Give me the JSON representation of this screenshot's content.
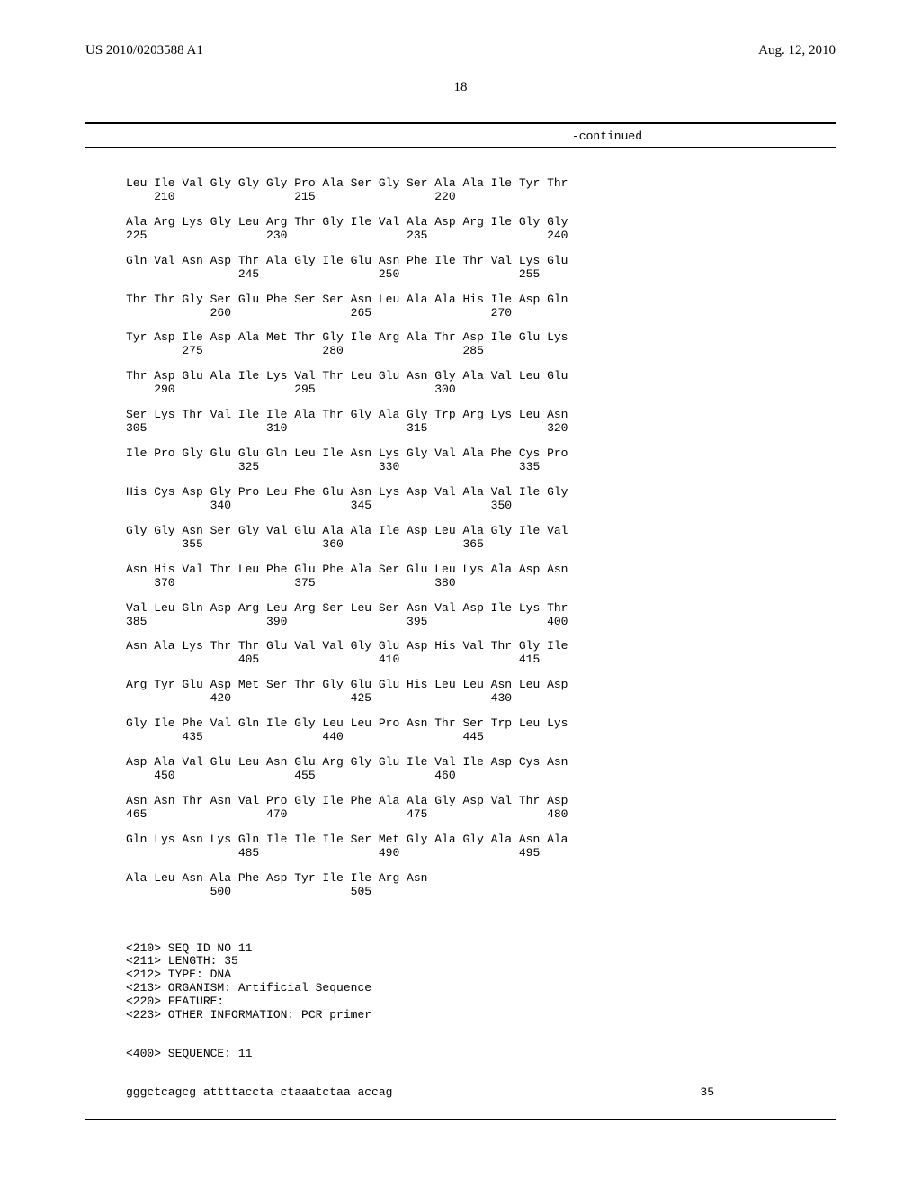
{
  "header": {
    "pub_number": "US 2010/0203588 A1",
    "pub_date": "Aug. 12, 2010",
    "page_number": "18",
    "continued": "-continued"
  },
  "sequence_blocks": [
    {
      "line1": "Leu Ile Val Gly Gly Gly Pro Ala Ser Gly Ser Ala Ala Ile Tyr Thr",
      "line2": "    210                 215                 220"
    },
    {
      "line1": "Ala Arg Lys Gly Leu Arg Thr Gly Ile Val Ala Asp Arg Ile Gly Gly",
      "line2": "225                 230                 235                 240"
    },
    {
      "line1": "Gln Val Asn Asp Thr Ala Gly Ile Glu Asn Phe Ile Thr Val Lys Glu",
      "line2": "                245                 250                 255"
    },
    {
      "line1": "Thr Thr Gly Ser Glu Phe Ser Ser Asn Leu Ala Ala His Ile Asp Gln",
      "line2": "            260                 265                 270"
    },
    {
      "line1": "Tyr Asp Ile Asp Ala Met Thr Gly Ile Arg Ala Thr Asp Ile Glu Lys",
      "line2": "        275                 280                 285"
    },
    {
      "line1": "Thr Asp Glu Ala Ile Lys Val Thr Leu Glu Asn Gly Ala Val Leu Glu",
      "line2": "    290                 295                 300"
    },
    {
      "line1": "Ser Lys Thr Val Ile Ile Ala Thr Gly Ala Gly Trp Arg Lys Leu Asn",
      "line2": "305                 310                 315                 320"
    },
    {
      "line1": "Ile Pro Gly Glu Glu Gln Leu Ile Asn Lys Gly Val Ala Phe Cys Pro",
      "line2": "                325                 330                 335"
    },
    {
      "line1": "His Cys Asp Gly Pro Leu Phe Glu Asn Lys Asp Val Ala Val Ile Gly",
      "line2": "            340                 345                 350"
    },
    {
      "line1": "Gly Gly Asn Ser Gly Val Glu Ala Ala Ile Asp Leu Ala Gly Ile Val",
      "line2": "        355                 360                 365"
    },
    {
      "line1": "Asn His Val Thr Leu Phe Glu Phe Ala Ser Glu Leu Lys Ala Asp Asn",
      "line2": "    370                 375                 380"
    },
    {
      "line1": "Val Leu Gln Asp Arg Leu Arg Ser Leu Ser Asn Val Asp Ile Lys Thr",
      "line2": "385                 390                 395                 400"
    },
    {
      "line1": "Asn Ala Lys Thr Thr Glu Val Val Gly Glu Asp His Val Thr Gly Ile",
      "line2": "                405                 410                 415"
    },
    {
      "line1": "Arg Tyr Glu Asp Met Ser Thr Gly Glu Glu His Leu Leu Asn Leu Asp",
      "line2": "            420                 425                 430"
    },
    {
      "line1": "Gly Ile Phe Val Gln Ile Gly Leu Leu Pro Asn Thr Ser Trp Leu Lys",
      "line2": "        435                 440                 445"
    },
    {
      "line1": "Asp Ala Val Glu Leu Asn Glu Arg Gly Glu Ile Val Ile Asp Cys Asn",
      "line2": "    450                 455                 460"
    },
    {
      "line1": "Asn Asn Thr Asn Val Pro Gly Ile Phe Ala Ala Gly Asp Val Thr Asp",
      "line2": "465                 470                 475                 480"
    },
    {
      "line1": "Gln Lys Asn Lys Gln Ile Ile Ile Ser Met Gly Ala Gly Ala Asn Ala",
      "line2": "                485                 490                 495"
    },
    {
      "line1": "Ala Leu Asn Ala Phe Asp Tyr Ile Ile Arg Asn",
      "line2": "            500                 505"
    }
  ],
  "seq_meta": [
    "<210> SEQ ID NO 11",
    "<211> LENGTH: 35",
    "<212> TYPE: DNA",
    "<213> ORGANISM: Artificial Sequence",
    "<220> FEATURE:",
    "<223> OTHER INFORMATION: PCR primer"
  ],
  "seq_400": "<400> SEQUENCE: 11",
  "primer": {
    "seq": "gggctcagcg attttaccta ctaaatctaa accag",
    "len": "35"
  }
}
